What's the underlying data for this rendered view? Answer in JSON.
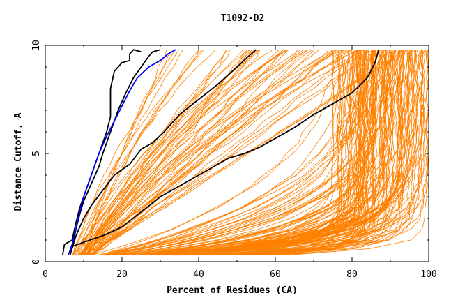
{
  "chart_data": {
    "type": "line",
    "title": "T1092-D2",
    "xlabel": "Percent of Residues (CA)",
    "ylabel": "Distance Cutoff, A",
    "xlim": [
      0,
      100
    ],
    "ylim": [
      0,
      10
    ],
    "x_ticks": [
      0,
      20,
      40,
      60,
      80,
      100
    ],
    "y_ticks": [
      0,
      5,
      10
    ],
    "grid": false,
    "colors": {
      "bundle": "#ff8000",
      "highlight_black": "#000000",
      "highlight_blue": "#0000ff"
    },
    "highlighted_series": [
      {
        "color": "#000000",
        "points": [
          [
            4.5,
            0.3
          ],
          [
            5,
            0.8
          ],
          [
            7,
            1.0
          ],
          [
            8,
            1.8
          ],
          [
            9,
            2.5
          ],
          [
            10,
            3.0
          ],
          [
            12,
            4.0
          ],
          [
            14,
            5.0
          ],
          [
            15,
            5.5
          ],
          [
            16,
            6.0
          ],
          [
            17,
            6.7
          ],
          [
            17,
            8.0
          ],
          [
            18,
            8.8
          ],
          [
            19,
            9.0
          ],
          [
            20,
            9.2
          ],
          [
            22,
            9.3
          ],
          [
            22,
            9.6
          ],
          [
            23,
            9.8
          ],
          [
            25,
            9.7
          ]
        ]
      },
      {
        "color": "#000000",
        "points": [
          [
            6.5,
            0.3
          ],
          [
            7,
            0.7
          ],
          [
            8,
            1.5
          ],
          [
            9,
            2.2
          ],
          [
            10,
            2.8
          ],
          [
            12,
            3.6
          ],
          [
            14,
            4.4
          ],
          [
            15,
            5.0
          ],
          [
            17,
            6.0
          ],
          [
            19,
            7.0
          ],
          [
            21,
            7.8
          ],
          [
            23,
            8.5
          ],
          [
            25,
            9.0
          ],
          [
            27,
            9.5
          ],
          [
            28,
            9.7
          ],
          [
            30,
            9.8
          ]
        ]
      },
      {
        "color": "#0000ff",
        "points": [
          [
            6,
            0.3
          ],
          [
            7,
            0.8
          ],
          [
            8,
            1.5
          ],
          [
            9,
            2.3
          ],
          [
            10,
            3.0
          ],
          [
            12,
            4.0
          ],
          [
            14,
            5.0
          ],
          [
            16,
            5.8
          ],
          [
            18,
            6.5
          ],
          [
            20,
            7.2
          ],
          [
            22,
            7.9
          ],
          [
            24,
            8.5
          ],
          [
            27,
            9.0
          ],
          [
            30,
            9.3
          ],
          [
            32,
            9.6
          ],
          [
            34,
            9.8
          ]
        ]
      },
      {
        "color": "#000000",
        "points": [
          [
            7,
            0.6
          ],
          [
            8,
            1.2
          ],
          [
            10,
            2.0
          ],
          [
            12,
            2.6
          ],
          [
            15,
            3.3
          ],
          [
            18,
            4.0
          ],
          [
            22,
            4.5
          ],
          [
            25,
            5.2
          ],
          [
            28,
            5.5
          ],
          [
            31,
            6.0
          ],
          [
            35,
            6.8
          ],
          [
            40,
            7.5
          ],
          [
            45,
            8.2
          ],
          [
            50,
            9.0
          ],
          [
            53,
            9.5
          ],
          [
            55,
            9.8
          ]
        ]
      },
      {
        "color": "#000000",
        "points": [
          [
            7,
            0.7
          ],
          [
            10,
            0.9
          ],
          [
            15,
            1.2
          ],
          [
            20,
            1.6
          ],
          [
            25,
            2.3
          ],
          [
            30,
            3.0
          ],
          [
            35,
            3.5
          ],
          [
            40,
            4.0
          ],
          [
            45,
            4.5
          ],
          [
            48,
            4.8
          ],
          [
            52,
            5.0
          ],
          [
            56,
            5.3
          ],
          [
            60,
            5.7
          ],
          [
            65,
            6.2
          ],
          [
            70,
            6.8
          ],
          [
            75,
            7.3
          ],
          [
            80,
            7.8
          ],
          [
            84,
            8.5
          ],
          [
            86,
            9.2
          ],
          [
            87,
            9.8
          ]
        ]
      }
    ]
  }
}
